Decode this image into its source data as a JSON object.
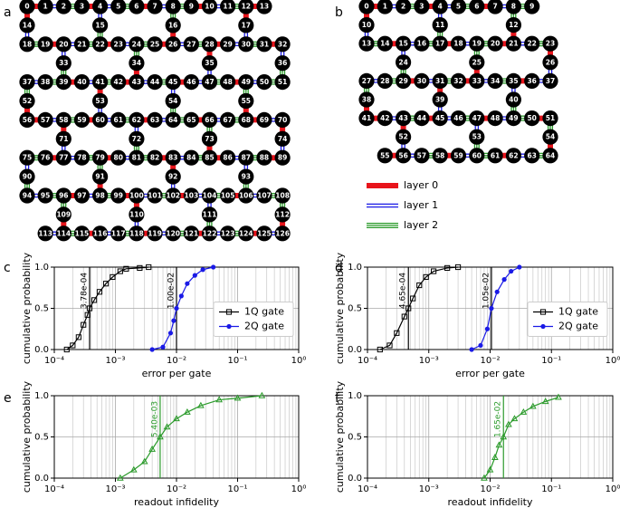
{
  "diagrams": [
    {
      "label": "a",
      "rows": [
        [
          0,
          1,
          2,
          3,
          4,
          5,
          6,
          7,
          8,
          9,
          10,
          11,
          12,
          13
        ],
        [
          18,
          19,
          20,
          21,
          22,
          23,
          24,
          25,
          26,
          27,
          28,
          29,
          30,
          31,
          32
        ],
        [
          37,
          38,
          39,
          40,
          41,
          42,
          43,
          44,
          45,
          46,
          47,
          48,
          49,
          50,
          51
        ],
        [
          56,
          57,
          58,
          59,
          60,
          61,
          62,
          63,
          64,
          65,
          66,
          67,
          68,
          69,
          70
        ],
        [
          75,
          76,
          77,
          78,
          79,
          80,
          81,
          82,
          83,
          84,
          85,
          86,
          87,
          88,
          89
        ],
        [
          94,
          95,
          96,
          97,
          98,
          99,
          100,
          101,
          102,
          103,
          104,
          105,
          106,
          107,
          108
        ],
        [
          113,
          114,
          115,
          116,
          117,
          118,
          119,
          120,
          121,
          122,
          123,
          124,
          125,
          126
        ]
      ],
      "connectors": [
        [
          14,
          15,
          16,
          17
        ],
        [
          33,
          34,
          35,
          36
        ],
        [
          52,
          53,
          54,
          55
        ],
        [
          71,
          72,
          73,
          74
        ],
        [
          90,
          91,
          92,
          93
        ],
        [
          109,
          110,
          111,
          112
        ]
      ]
    },
    {
      "label": "b",
      "rows": [
        [
          0,
          1,
          2,
          3,
          4,
          5,
          6,
          7,
          8,
          9
        ],
        [
          13,
          14,
          15,
          16,
          17,
          18,
          19,
          20,
          21,
          22,
          23
        ],
        [
          27,
          28,
          29,
          30,
          31,
          32,
          33,
          34,
          35,
          36,
          37
        ],
        [
          41,
          42,
          43,
          44,
          45,
          46,
          47,
          48,
          49,
          50,
          51
        ],
        [
          55,
          56,
          57,
          58,
          59,
          60,
          61,
          62,
          63,
          64
        ]
      ],
      "connectors": [
        [
          10,
          11,
          12
        ],
        [
          24,
          25,
          26
        ],
        [
          38,
          39,
          40
        ],
        [
          52,
          53,
          54
        ]
      ]
    }
  ],
  "legend": [
    {
      "label": "layer 0",
      "color": "#e8141b"
    },
    {
      "label": "layer 1",
      "color": "#1a1ae6"
    },
    {
      "label": "layer 2",
      "color": "#2a9a2a"
    }
  ],
  "chart_data": [
    {
      "type": "line",
      "label": "c",
      "xlabel": "error per gate",
      "ylabel": "cumulative probability",
      "log_x": true,
      "grid": true,
      "legend": "center right",
      "xlim": [
        0.0001,
        1
      ],
      "ylim": [
        0,
        1
      ],
      "xticks": [
        {
          "value": 0.0001,
          "label": "10⁻⁴"
        },
        {
          "value": 0.001,
          "label": "10⁻³"
        },
        {
          "value": 0.01,
          "label": "10⁻²"
        },
        {
          "value": 0.1,
          "label": "10⁻¹"
        },
        {
          "value": 1,
          "label": "10⁰"
        }
      ],
      "yticks": [
        {
          "value": 0,
          "label": "0.0"
        },
        {
          "value": 0.5,
          "label": "0.5"
        },
        {
          "value": 1,
          "label": "1.0"
        }
      ],
      "series": [
        {
          "name": "1Q gate",
          "color": "#000000",
          "marker": "square",
          "x": [
            0.00016,
            0.0002,
            0.00025,
            0.0003,
            0.00035,
            0.000378,
            0.00045,
            0.00055,
            0.0007,
            0.0009,
            0.0012,
            0.0015,
            0.0025,
            0.0035
          ],
          "values": [
            0,
            0.05,
            0.15,
            0.3,
            0.42,
            0.5,
            0.6,
            0.7,
            0.8,
            0.88,
            0.95,
            0.98,
            0.99,
            1
          ]
        },
        {
          "name": "2Q gate",
          "color": "#1a1ae6",
          "marker": "circle",
          "x": [
            0.004,
            0.006,
            0.008,
            0.009,
            0.01,
            0.012,
            0.015,
            0.02,
            0.027,
            0.04
          ],
          "values": [
            0,
            0.03,
            0.2,
            0.35,
            0.5,
            0.65,
            0.8,
            0.9,
            0.97,
            1
          ]
        }
      ],
      "vlines": [
        {
          "value": 0.000378,
          "label": "3.78e-04",
          "color": "#000000"
        },
        {
          "value": 0.01,
          "label": "1.00e-02",
          "color": "#000000"
        }
      ]
    },
    {
      "type": "line",
      "label": "d",
      "xlabel": "error per gate",
      "ylabel": "cumulative probability",
      "log_x": true,
      "grid": true,
      "legend": "center right",
      "xlim": [
        0.0001,
        1
      ],
      "ylim": [
        0,
        1
      ],
      "xticks": [
        {
          "value": 0.0001,
          "label": "10⁻⁴"
        },
        {
          "value": 0.001,
          "label": "10⁻³"
        },
        {
          "value": 0.01,
          "label": "10⁻²"
        },
        {
          "value": 0.1,
          "label": "10⁻¹"
        },
        {
          "value": 1,
          "label": "10⁰"
        }
      ],
      "yticks": [
        {
          "value": 0,
          "label": "0.0"
        },
        {
          "value": 0.5,
          "label": "0.5"
        },
        {
          "value": 1,
          "label": "1.0"
        }
      ],
      "series": [
        {
          "name": "1Q gate",
          "color": "#000000",
          "marker": "square",
          "x": [
            0.00016,
            0.00023,
            0.0003,
            0.0004,
            0.000465,
            0.00055,
            0.0007,
            0.0009,
            0.0012,
            0.002,
            0.003
          ],
          "values": [
            0,
            0.05,
            0.2,
            0.4,
            0.5,
            0.62,
            0.78,
            0.88,
            0.95,
            0.99,
            1
          ]
        },
        {
          "name": "2Q gate",
          "color": "#1a1ae6",
          "marker": "circle",
          "x": [
            0.005,
            0.007,
            0.009,
            0.0105,
            0.013,
            0.017,
            0.022,
            0.03
          ],
          "values": [
            0,
            0.05,
            0.25,
            0.5,
            0.7,
            0.85,
            0.95,
            1
          ]
        }
      ],
      "vlines": [
        {
          "value": 0.000465,
          "label": "4.65e-04",
          "color": "#000000"
        },
        {
          "value": 0.0105,
          "label": "1.05e-02",
          "color": "#000000"
        }
      ]
    },
    {
      "type": "line",
      "label": "e",
      "xlabel": "readout infidelity",
      "ylabel": "cumulative probability",
      "log_x": true,
      "grid": true,
      "xlim": [
        0.0001,
        1
      ],
      "ylim": [
        0,
        1
      ],
      "xticks": [
        {
          "value": 0.0001,
          "label": "10⁻⁴"
        },
        {
          "value": 0.001,
          "label": "10⁻³"
        },
        {
          "value": 0.01,
          "label": "10⁻²"
        },
        {
          "value": 0.1,
          "label": "10⁻¹"
        },
        {
          "value": 1,
          "label": "10⁰"
        }
      ],
      "yticks": [
        {
          "value": 0,
          "label": "0.0"
        },
        {
          "value": 0.5,
          "label": "0.5"
        },
        {
          "value": 1,
          "label": "1.0"
        }
      ],
      "series": [
        {
          "color": "#2a9a2a",
          "marker": "triangle",
          "x": [
            0.0012,
            0.002,
            0.003,
            0.004,
            0.0054,
            0.007,
            0.01,
            0.015,
            0.025,
            0.05,
            0.1,
            0.25
          ],
          "values": [
            0,
            0.1,
            0.2,
            0.35,
            0.5,
            0.62,
            0.72,
            0.8,
            0.88,
            0.95,
            0.97,
            1
          ]
        }
      ],
      "vlines": [
        {
          "value": 0.0054,
          "label": "5.40e-03",
          "color": "#2a9a2a"
        }
      ]
    },
    {
      "type": "line",
      "label": "f",
      "xlabel": "readout infidelity",
      "ylabel": "cumulative probability",
      "log_x": true,
      "grid": true,
      "xlim": [
        0.0001,
        1
      ],
      "ylim": [
        0,
        1
      ],
      "xticks": [
        {
          "value": 0.0001,
          "label": "10⁻⁴"
        },
        {
          "value": 0.001,
          "label": "10⁻³"
        },
        {
          "value": 0.01,
          "label": "10⁻²"
        },
        {
          "value": 0.1,
          "label": "10⁻¹"
        },
        {
          "value": 1,
          "label": "10⁰"
        }
      ],
      "yticks": [
        {
          "value": 0,
          "label": "0.0"
        },
        {
          "value": 0.5,
          "label": "0.5"
        },
        {
          "value": 1,
          "label": "1.0"
        }
      ],
      "series": [
        {
          "color": "#2a9a2a",
          "marker": "triangle",
          "x": [
            0.008,
            0.01,
            0.012,
            0.014,
            0.0165,
            0.02,
            0.025,
            0.035,
            0.05,
            0.08,
            0.13
          ],
          "values": [
            0,
            0.1,
            0.25,
            0.4,
            0.5,
            0.65,
            0.72,
            0.8,
            0.87,
            0.93,
            0.98
          ]
        }
      ],
      "vlines": [
        {
          "value": 0.0165,
          "label": "1.65e-02",
          "color": "#2a9a2a"
        }
      ]
    }
  ]
}
